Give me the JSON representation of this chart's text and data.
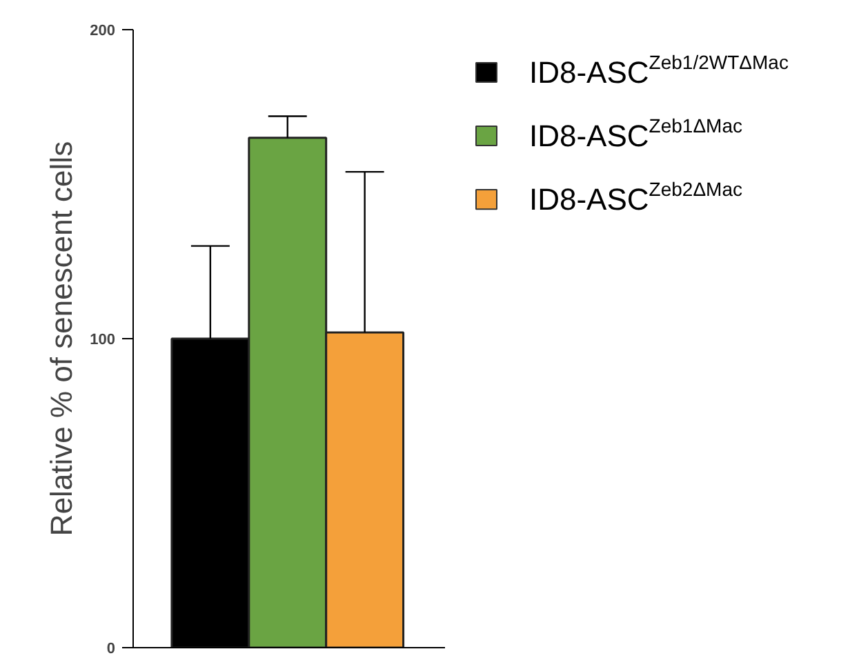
{
  "chart_data": {
    "type": "bar",
    "ylabel": "Relative % of senescent cells",
    "categories": [
      null
    ],
    "ylim": [
      0,
      200
    ],
    "yticks": [
      0,
      100,
      200
    ],
    "grid": false,
    "legend": "right",
    "series": [
      {
        "name": "ID8-ASC$^{Zeb1/2WTΔMac}$",
        "color": "#000000",
        "values": [
          100
        ],
        "errors": [
          [
            100,
            130
          ]
        ]
      },
      {
        "name": "ID8-ASC$^{Zeb1ΔMac}$",
        "color": "#6aa443",
        "values": [
          165
        ],
        "errors": [
          [
            165,
            172
          ]
        ]
      },
      {
        "name": "ID8-ASC$^{Zeb2ΔMac}$",
        "color": "#f4a03a",
        "values": [
          102
        ],
        "errors": [
          [
            102,
            154
          ]
        ]
      }
    ]
  }
}
